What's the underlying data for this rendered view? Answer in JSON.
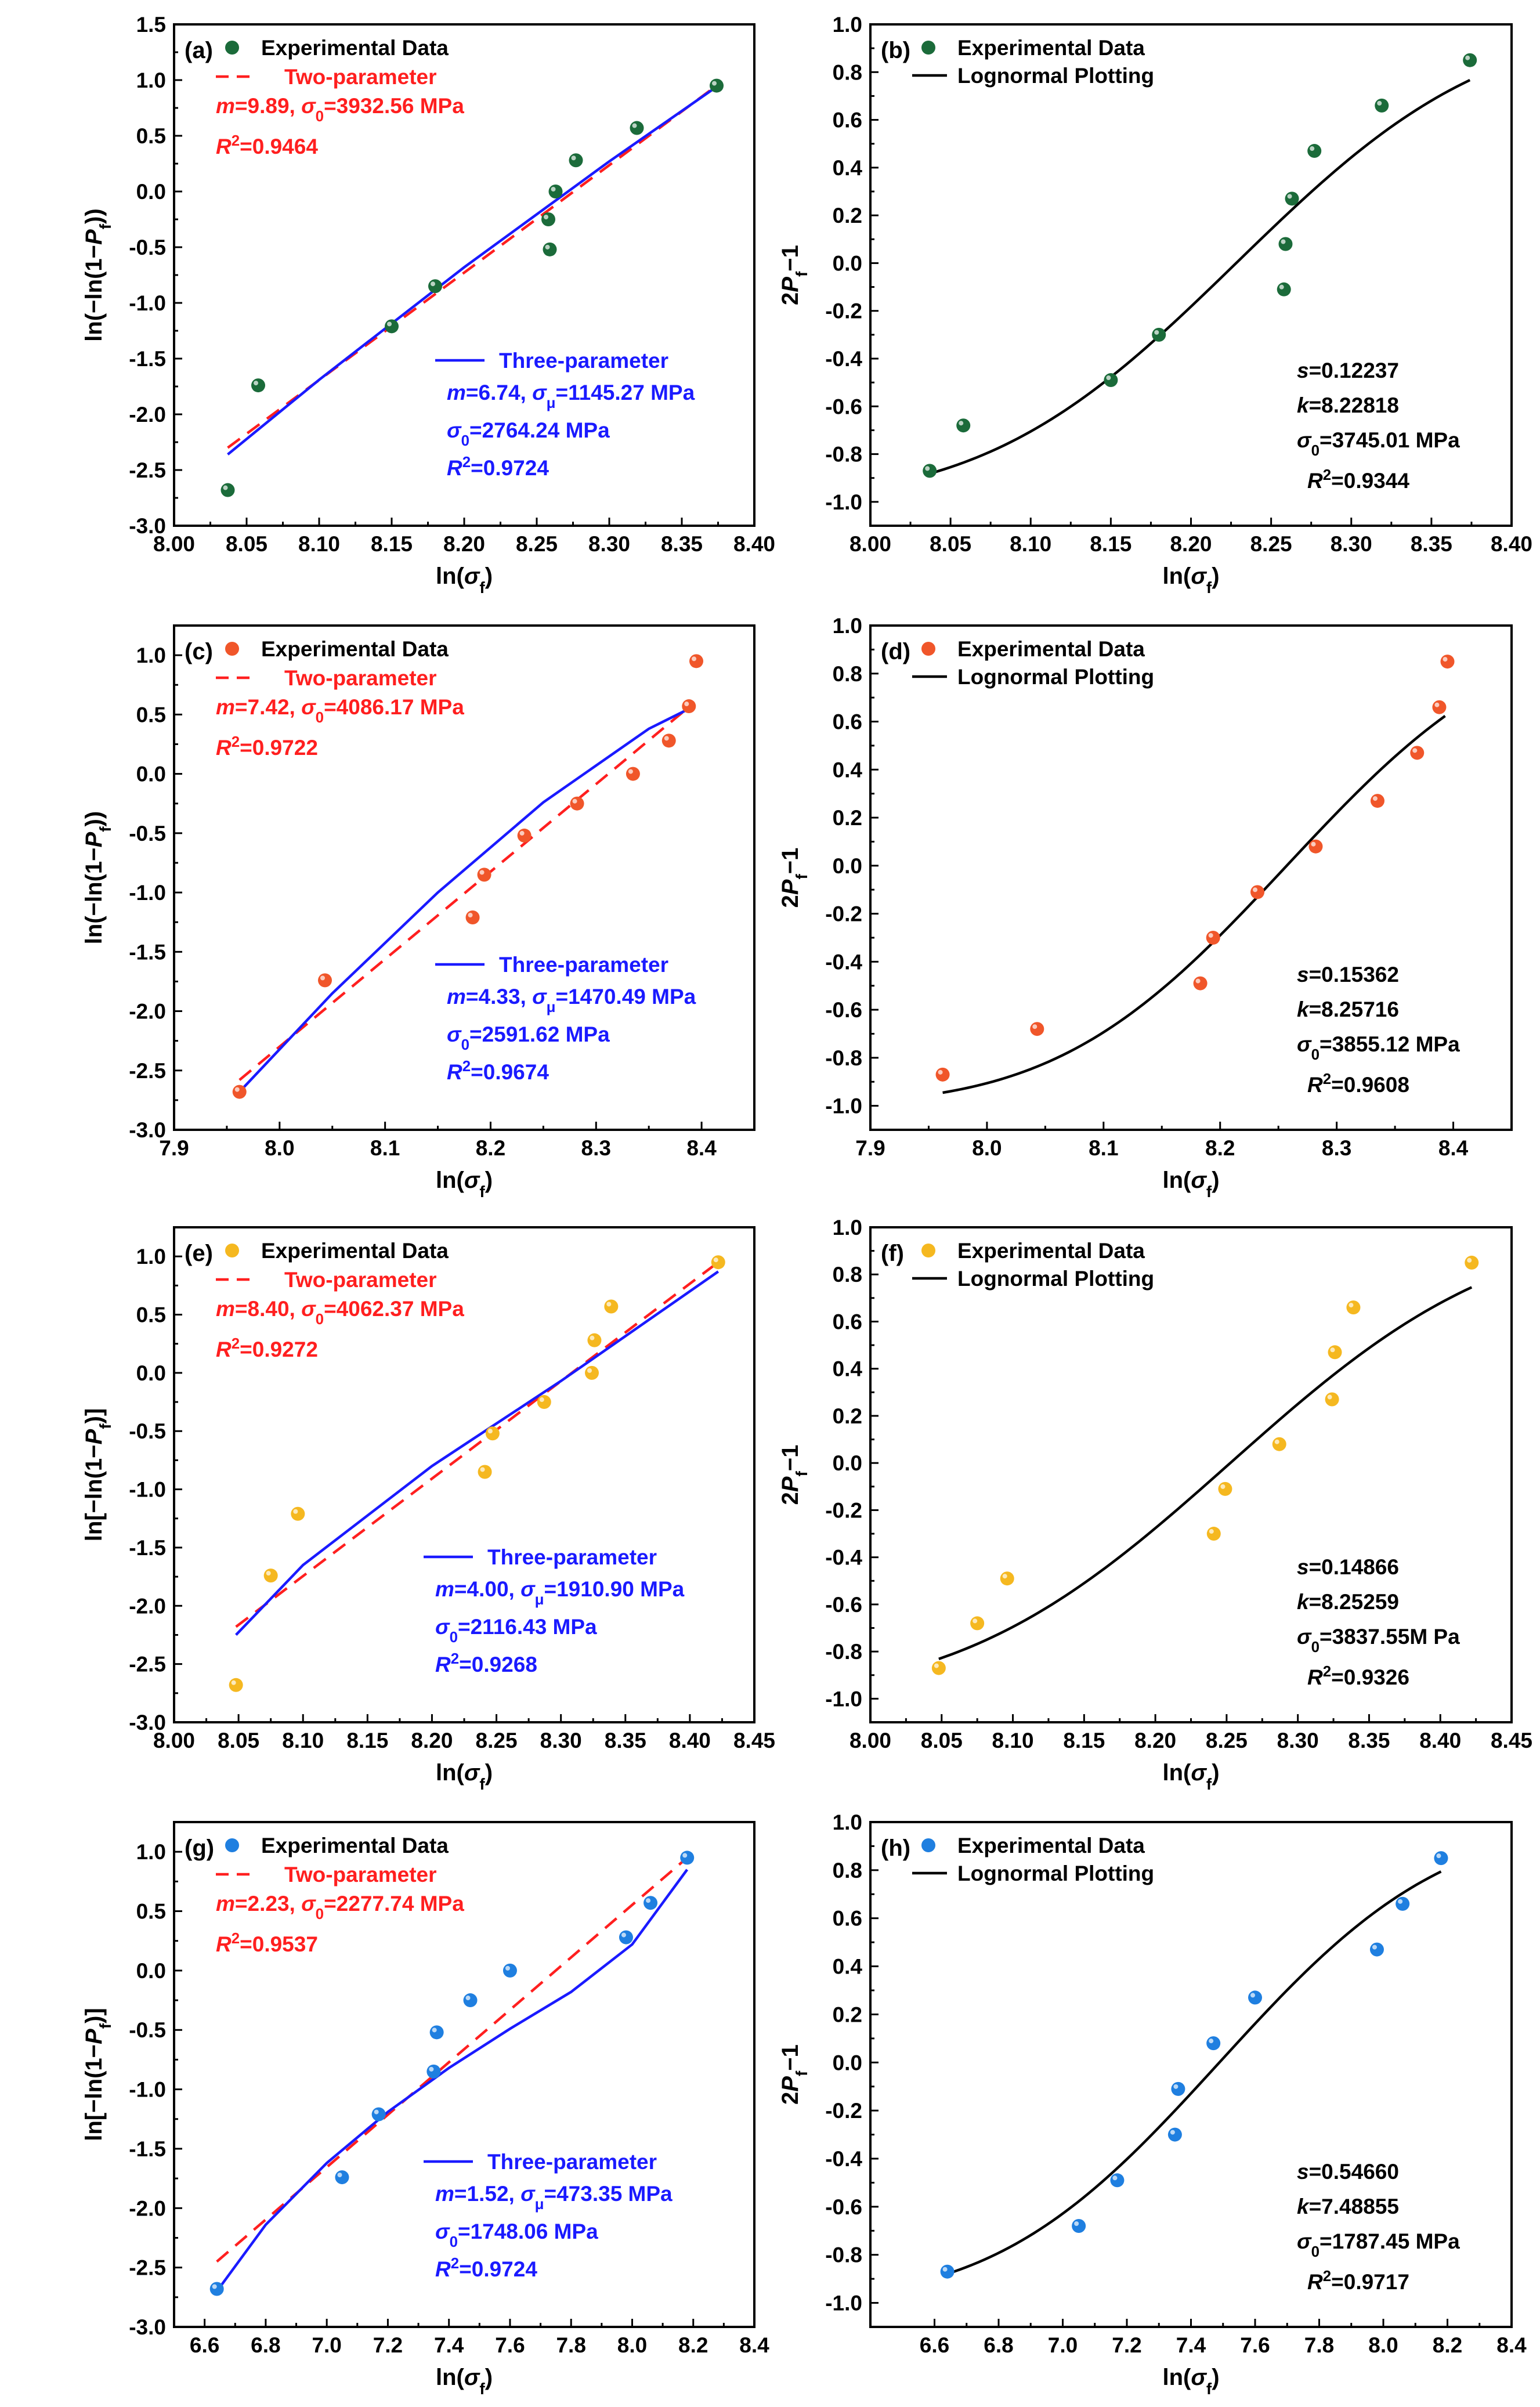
{
  "figure": {
    "panels_count": 8,
    "description_labels": [
      "(a)",
      "(b)",
      "(c)",
      "(d)",
      "(e)",
      "(f)",
      "(g)",
      "(h)"
    ]
  },
  "colors": {
    "green": "#1b6b3a",
    "orange": "#f0562a",
    "yellow": "#f5b820",
    "blue_point": "#1f7fe0",
    "red_line": "#ff1f1f",
    "blue_line": "#1a1aff",
    "black_line": "#000000"
  },
  "chart_data": [
    {
      "id": "a",
      "type": "scatter",
      "label": "(a)",
      "xlabel": "ln(σf)",
      "ylabel": "ln(−ln(1−Pf))",
      "xlim": [
        8.0,
        8.4
      ],
      "ylim": [
        -3.0,
        1.5
      ],
      "xticks": [
        8.0,
        8.05,
        8.1,
        8.15,
        8.2,
        8.25,
        8.3,
        8.35,
        8.4
      ],
      "xtick_labels": [
        "8.00",
        "8.05",
        "8.10",
        "8.15",
        "8.20",
        "8.25",
        "8.30",
        "8.35",
        "8.40"
      ],
      "yticks": [
        -3.0,
        -2.5,
        -2.0,
        -1.5,
        -1.0,
        -0.5,
        0.0,
        0.5,
        1.0,
        1.5
      ],
      "ytick_labels": [
        "-3.0",
        "-2.5",
        "-2.0",
        "-1.5",
        "-1.0",
        "-0.5",
        "0.0",
        "0.5",
        "1.0",
        "1.5"
      ],
      "points": {
        "name": "Experimental Data",
        "color": "green",
        "x": [
          8.037,
          8.058,
          8.15,
          8.18,
          8.258,
          8.259,
          8.263,
          8.277,
          8.319,
          8.374
        ],
        "y": [
          -2.68,
          -1.74,
          -1.21,
          -0.85,
          -0.25,
          -0.52,
          0.0,
          0.28,
          0.57,
          0.95
        ]
      },
      "lines": [
        {
          "name": "Two-parameter",
          "style": "dashed",
          "color": "red_line",
          "x": [
            8.037,
            8.374
          ],
          "y": [
            -2.3,
            0.95
          ]
        },
        {
          "name": "Three-parameter",
          "style": "solid",
          "color": "blue_line",
          "x": [
            8.037,
            8.1,
            8.2,
            8.3,
            8.374
          ],
          "y": [
            -2.36,
            -1.69,
            -0.68,
            0.27,
            0.94
          ]
        }
      ],
      "annotations": {
        "two": {
          "name": "Two-parameter",
          "line1": "m=9.89, σ0=3932.56 MPa",
          "line2": "R2=0.9464"
        },
        "three": {
          "name": "Three-parameter",
          "line1": "m=6.74, σμ=1145.27 MPa",
          "line2": "σ0=2764.24 MPa",
          "line3": "R2=0.9724"
        }
      }
    },
    {
      "id": "b",
      "type": "scatter",
      "label": "(b)",
      "xlabel": "ln(σf)",
      "ylabel": "2Pf−1",
      "xlim": [
        8.0,
        8.4
      ],
      "ylim": [
        -1.1,
        1.0
      ],
      "xticks": [
        8.0,
        8.05,
        8.1,
        8.15,
        8.2,
        8.25,
        8.3,
        8.35,
        8.4
      ],
      "xtick_labels": [
        "8.00",
        "8.05",
        "8.10",
        "8.15",
        "8.20",
        "8.25",
        "8.30",
        "8.35",
        "8.40"
      ],
      "yticks": [
        -1.0,
        -0.8,
        -0.6,
        -0.4,
        -0.2,
        0.0,
        0.2,
        0.4,
        0.6,
        0.8,
        1.0
      ],
      "ytick_labels": [
        "-1.0",
        "-0.8",
        "-0.6",
        "-0.4",
        "-0.2",
        "0.0",
        "0.2",
        "0.4",
        "0.6",
        "0.8",
        "1.0"
      ],
      "points": {
        "name": "Experimental Data",
        "color": "green",
        "x": [
          8.037,
          8.058,
          8.15,
          8.18,
          8.258,
          8.259,
          8.263,
          8.277,
          8.319,
          8.374
        ],
        "y": [
          -0.87,
          -0.68,
          -0.49,
          -0.3,
          -0.11,
          0.08,
          0.27,
          0.47,
          0.66,
          0.85
        ]
      },
      "curve": {
        "name": "Lognormal Plotting",
        "color": "black_line",
        "s": 0.12237,
        "k": 8.22818,
        "x_range": [
          8.037,
          8.374
        ]
      },
      "annotations": {
        "s": "s=0.12237",
        "k": "k=8.22818",
        "sigma": "σ0=3745.01 MPa",
        "r2": "R2=0.9344"
      }
    },
    {
      "id": "c",
      "type": "scatter",
      "label": "(c)",
      "xlabel": "ln(σf)",
      "ylabel": "ln(−ln(1−Pf))",
      "xlim": [
        7.9,
        8.45
      ],
      "ylim": [
        -3.0,
        1.25
      ],
      "xticks": [
        7.9,
        8.0,
        8.1,
        8.2,
        8.3,
        8.4
      ],
      "xtick_labels": [
        "7.9",
        "8.0",
        "8.1",
        "8.2",
        "8.3",
        "8.4"
      ],
      "yticks": [
        -3.0,
        -2.5,
        -2.0,
        -1.5,
        -1.0,
        -0.5,
        0.0,
        0.5,
        1.0
      ],
      "ytick_labels": [
        "-3.0",
        "-2.5",
        "-2.0",
        "-1.5",
        "-1.0",
        "-0.5",
        "0.0",
        "0.5",
        "1.0"
      ],
      "points": {
        "name": "Experimental Data",
        "color": "orange",
        "x": [
          7.962,
          8.043,
          8.183,
          8.194,
          8.232,
          8.282,
          8.335,
          8.369,
          8.388,
          8.395
        ],
        "y": [
          -2.68,
          -1.74,
          -1.21,
          -0.85,
          -0.52,
          -0.25,
          0.0,
          0.28,
          0.57,
          0.95
        ]
      },
      "lines": [
        {
          "name": "Two-parameter",
          "style": "dashed",
          "color": "red_line",
          "x": [
            7.962,
            8.393
          ],
          "y": [
            -2.58,
            0.6
          ]
        },
        {
          "name": "Three-parameter",
          "style": "solid",
          "color": "blue_line",
          "x": [
            7.962,
            8.05,
            8.15,
            8.25,
            8.35,
            8.393
          ],
          "y": [
            -2.68,
            -1.85,
            -1.0,
            -0.24,
            0.38,
            0.57
          ]
        }
      ],
      "annotations": {
        "two": {
          "name": "Two-parameter",
          "line1": "m=7.42, σ0=4086.17 MPa",
          "line2": "R2=0.9722"
        },
        "three": {
          "name": "Three-parameter",
          "line1": "m=4.33, σμ=1470.49 MPa",
          "line2": "σ0=2591.62 MPa",
          "line3": "R2=0.9674"
        }
      }
    },
    {
      "id": "d",
      "type": "scatter",
      "label": "(d)",
      "xlabel": "ln(σf)",
      "ylabel": "2Pf−1",
      "xlim": [
        7.9,
        8.45
      ],
      "ylim": [
        -1.1,
        1.0
      ],
      "xticks": [
        7.9,
        8.0,
        8.1,
        8.2,
        8.3,
        8.4
      ],
      "xtick_labels": [
        "7.9",
        "8.0",
        "8.1",
        "8.2",
        "8.3",
        "8.4"
      ],
      "yticks": [
        -1.0,
        -0.8,
        -0.6,
        -0.4,
        -0.2,
        0.0,
        0.2,
        0.4,
        0.6,
        0.8,
        1.0
      ],
      "ytick_labels": [
        "-1.0",
        "-0.8",
        "-0.6",
        "-0.4",
        "-0.2",
        "0.0",
        "0.2",
        "0.4",
        "0.6",
        "0.8",
        "1.0"
      ],
      "points": {
        "name": "Experimental Data",
        "color": "orange",
        "x": [
          7.962,
          8.043,
          8.183,
          8.194,
          8.232,
          8.282,
          8.335,
          8.369,
          8.388,
          8.395
        ],
        "y": [
          -0.87,
          -0.68,
          -0.49,
          -0.3,
          -0.11,
          0.08,
          0.27,
          0.47,
          0.66,
          0.85
        ]
      },
      "curve": {
        "name": "Lognormal Plotting",
        "color": "black_line",
        "s": 0.15362,
        "k": 8.25716,
        "x_range": [
          7.962,
          8.393
        ]
      },
      "annotations": {
        "s": "s=0.15362",
        "k": "k=8.25716",
        "sigma": "σ0=3855.12 MPa",
        "r2": "R2=0.9608"
      }
    },
    {
      "id": "e",
      "type": "scatter",
      "label": "(e)",
      "xlabel": "ln(σf)",
      "ylabel": "ln[−ln(1−Pf)]",
      "xlim": [
        8.0,
        8.45
      ],
      "ylim": [
        -3.0,
        1.25
      ],
      "xticks": [
        8.0,
        8.05,
        8.1,
        8.15,
        8.2,
        8.25,
        8.3,
        8.35,
        8.4,
        8.45
      ],
      "xtick_labels": [
        "8.00",
        "8.05",
        "8.10",
        "8.15",
        "8.20",
        "8.25",
        "8.30",
        "8.35",
        "8.40",
        "8.45"
      ],
      "yticks": [
        -3.0,
        -2.5,
        -2.0,
        -1.5,
        -1.0,
        -0.5,
        0.0,
        0.5,
        1.0
      ],
      "ytick_labels": [
        "-3.0",
        "-2.5",
        "-2.0",
        "-1.5",
        "-1.0",
        "-0.5",
        "0.0",
        "0.5",
        "1.0"
      ],
      "points": {
        "name": "Experimental Data",
        "color": "yellow",
        "x": [
          8.048,
          8.075,
          8.096,
          8.241,
          8.247,
          8.287,
          8.324,
          8.326,
          8.339,
          8.422
        ],
        "y": [
          -2.68,
          -1.74,
          -1.21,
          -0.85,
          -0.52,
          -0.25,
          0.0,
          0.28,
          0.57,
          0.95
        ]
      },
      "lines": [
        {
          "name": "Two-parameter",
          "style": "dashed",
          "color": "red_line",
          "x": [
            8.048,
            8.422
          ],
          "y": [
            -2.18,
            0.95
          ]
        },
        {
          "name": "Three-parameter",
          "style": "solid",
          "color": "blue_line",
          "x": [
            8.048,
            8.1,
            8.2,
            8.3,
            8.422
          ],
          "y": [
            -2.25,
            -1.65,
            -0.8,
            -0.07,
            0.87
          ]
        }
      ],
      "annotations": {
        "two": {
          "name": "Two-parameter",
          "line1": "m=8.40, σ0=4062.37 MPa",
          "line2": "R2=0.9272"
        },
        "three": {
          "name": "Three-parameter",
          "line1": "m=4.00, σμ=1910.90 MPa",
          "line2": "σ0=2116.43 MPa",
          "line3": "R2=0.9268"
        }
      }
    },
    {
      "id": "f",
      "type": "scatter",
      "label": "(f)",
      "xlabel": "ln(σf)",
      "ylabel": "2Pf−1",
      "xlim": [
        8.0,
        8.45
      ],
      "ylim": [
        -1.1,
        1.0
      ],
      "xticks": [
        8.0,
        8.05,
        8.1,
        8.15,
        8.2,
        8.25,
        8.3,
        8.35,
        8.4,
        8.45
      ],
      "xtick_labels": [
        "8.00",
        "8.05",
        "8.10",
        "8.15",
        "8.20",
        "8.25",
        "8.30",
        "8.35",
        "8.40",
        "8.45"
      ],
      "yticks": [
        -1.0,
        -0.8,
        -0.6,
        -0.4,
        -0.2,
        0.0,
        0.2,
        0.4,
        0.6,
        0.8,
        1.0
      ],
      "ytick_labels": [
        "-1.0",
        "-0.8",
        "-0.6",
        "-0.4",
        "-0.2",
        "0.0",
        "0.2",
        "0.4",
        "0.6",
        "0.8",
        "1.0"
      ],
      "points": {
        "name": "Experimental Data",
        "color": "yellow",
        "x": [
          8.048,
          8.075,
          8.096,
          8.241,
          8.249,
          8.287,
          8.324,
          8.326,
          8.339,
          8.422
        ],
        "y": [
          -0.87,
          -0.68,
          -0.49,
          -0.3,
          -0.11,
          0.08,
          0.27,
          0.47,
          0.66,
          0.85
        ]
      },
      "curve": {
        "name": "Lognormal Plotting",
        "color": "black_line",
        "s": 0.14866,
        "k": 8.25259,
        "x_range": [
          8.048,
          8.422
        ]
      },
      "annotations": {
        "s": "s=0.14866",
        "k": "k=8.25259",
        "sigma": "σ0=3837.55M Pa",
        "r2": "R2=0.9326"
      }
    },
    {
      "id": "g",
      "type": "scatter",
      "label": "(g)",
      "xlabel": "ln(σf)",
      "ylabel": "ln[−ln(1−Pf)]",
      "xlim": [
        6.5,
        8.4
      ],
      "ylim": [
        -3.0,
        1.25
      ],
      "xticks": [
        6.6,
        6.8,
        7.0,
        7.2,
        7.4,
        7.6,
        7.8,
        8.0,
        8.2,
        8.4
      ],
      "xtick_labels": [
        "6.6",
        "6.8",
        "7.0",
        "7.2",
        "7.4",
        "7.6",
        "7.8",
        "8.0",
        "8.2",
        "8.4"
      ],
      "yticks": [
        -3.0,
        -2.5,
        -2.0,
        -1.5,
        -1.0,
        -0.5,
        0.0,
        0.5,
        1.0
      ],
      "ytick_labels": [
        "-3.0",
        "-2.5",
        "-2.0",
        "-1.5",
        "-1.0",
        "-0.5",
        "0.0",
        "0.5",
        "1.0"
      ],
      "points": {
        "name": "Experimental Data",
        "color": "blue_point",
        "x": [
          6.64,
          7.05,
          7.17,
          7.35,
          7.36,
          7.47,
          7.6,
          7.98,
          8.06,
          8.18
        ],
        "y": [
          -2.68,
          -1.74,
          -1.21,
          -0.85,
          -0.52,
          -0.25,
          0.0,
          0.28,
          0.57,
          0.95
        ]
      },
      "lines": [
        {
          "name": "Two-parameter",
          "style": "dashed",
          "color": "red_line",
          "x": [
            6.64,
            8.18
          ],
          "y": [
            -2.45,
            0.95
          ]
        },
        {
          "name": "Three-parameter",
          "style": "solid",
          "color": "blue_line",
          "x": [
            6.64,
            6.8,
            7.0,
            7.2,
            7.4,
            7.6,
            7.8,
            8.0,
            8.18
          ],
          "y": [
            -2.7,
            -2.14,
            -1.62,
            -1.19,
            -0.82,
            -0.49,
            -0.18,
            0.22,
            0.85
          ]
        }
      ],
      "annotations": {
        "two": {
          "name": "Two-parameter",
          "line1": "m=2.23, σ0=2277.74 MPa",
          "line2": "R2=0.9537"
        },
        "three": {
          "name": "Three-parameter",
          "line1": "m=1.52, σμ=473.35 MPa",
          "line2": "σ0=1748.06 MPa",
          "line3": "R2=0.9724"
        }
      }
    },
    {
      "id": "h",
      "type": "scatter",
      "label": "(h)",
      "xlabel": "ln(σf)",
      "ylabel": "2Pf−1",
      "xlim": [
        6.4,
        8.4
      ],
      "ylim": [
        -1.1,
        1.0
      ],
      "xticks": [
        6.6,
        6.8,
        7.0,
        7.2,
        7.4,
        7.6,
        7.8,
        8.0,
        8.2,
        8.4
      ],
      "xtick_labels": [
        "6.6",
        "6.8",
        "7.0",
        "7.2",
        "7.4",
        "7.6",
        "7.8",
        "8.0",
        "8.2",
        "8.4"
      ],
      "yticks": [
        -1.0,
        -0.8,
        -0.6,
        -0.4,
        -0.2,
        0.0,
        0.2,
        0.4,
        0.6,
        0.8,
        1.0
      ],
      "ytick_labels": [
        "-1.0",
        "-0.8",
        "-0.6",
        "-0.4",
        "-0.2",
        "0.0",
        "0.2",
        "0.4",
        "0.6",
        "0.8",
        "1.0"
      ],
      "points": {
        "name": "Experimental Data",
        "color": "blue_point",
        "x": [
          6.64,
          7.05,
          7.17,
          7.35,
          7.36,
          7.47,
          7.6,
          7.98,
          8.06,
          8.18
        ],
        "y": [
          -0.87,
          -0.68,
          -0.49,
          -0.3,
          -0.11,
          0.08,
          0.27,
          0.47,
          0.66,
          0.85
        ]
      },
      "curve": {
        "name": "Lognormal Plotting",
        "color": "black_line",
        "s": 0.5466,
        "k": 7.48855,
        "x_range": [
          6.64,
          8.18
        ]
      },
      "annotations": {
        "s": "s=0.54660",
        "k": "k=7.48855",
        "sigma": "σ0=1787.45 MPa",
        "r2": "R2=0.9717"
      }
    }
  ]
}
